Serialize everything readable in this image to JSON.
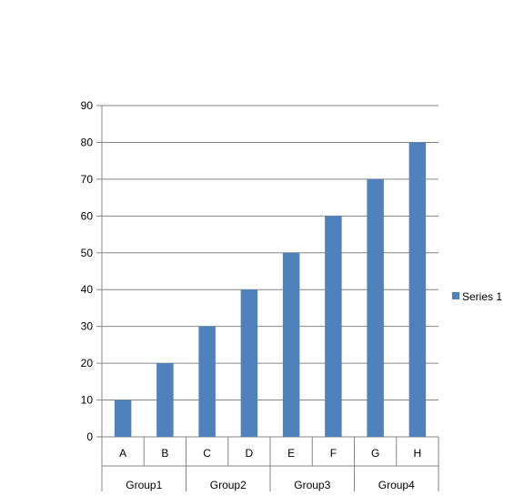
{
  "chart_data": {
    "type": "bar",
    "categories": [
      "A",
      "B",
      "C",
      "D",
      "E",
      "F",
      "G",
      "H"
    ],
    "groups": [
      {
        "label": "Group1",
        "categories": [
          "A",
          "B"
        ]
      },
      {
        "label": "Group2",
        "categories": [
          "C",
          "D"
        ]
      },
      {
        "label": "Group3",
        "categories": [
          "E",
          "F"
        ]
      },
      {
        "label": "Group4",
        "categories": [
          "G",
          "H"
        ]
      }
    ],
    "series": [
      {
        "name": "Series 1",
        "values": [
          10,
          20,
          30,
          40,
          50,
          60,
          70,
          80
        ],
        "color": "#4F81BD"
      }
    ],
    "yticks": [
      "0",
      "10",
      "20",
      "30",
      "40",
      "50",
      "60",
      "70",
      "80",
      "90"
    ],
    "ylim": [
      0,
      90
    ],
    "grid": true,
    "legend_position": "right",
    "gridline_color": "#868686",
    "axis_color": "#868686"
  }
}
